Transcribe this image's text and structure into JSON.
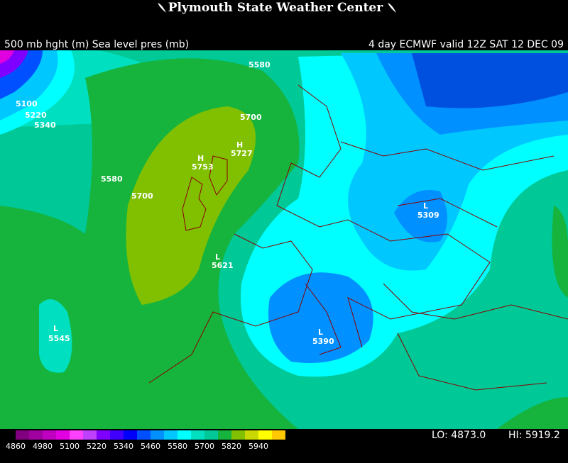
{
  "header": {
    "title": "Plymouth State Weather Center",
    "left": "500 mb hght (m) Sea level pres (mb)",
    "right": "4 day ECMWF  valid 12Z SAT 12 DEC 09"
  },
  "map_labels": [
    "5580",
    "5100",
    "5220",
    "5340",
    "5700",
    "H",
    "5727",
    "H",
    "5753",
    "5580",
    "5700",
    "L",
    "5309",
    "L",
    "5621",
    "L",
    "5545",
    "L",
    "5390"
  ],
  "colorbar": [
    "4860",
    "4980",
    "5100",
    "5220",
    "5340",
    "5460",
    "5580",
    "5700",
    "5820",
    "5940"
  ],
  "stats": {
    "lo": "LO: 4873.0",
    "hi": "HI: 5919.2"
  }
}
